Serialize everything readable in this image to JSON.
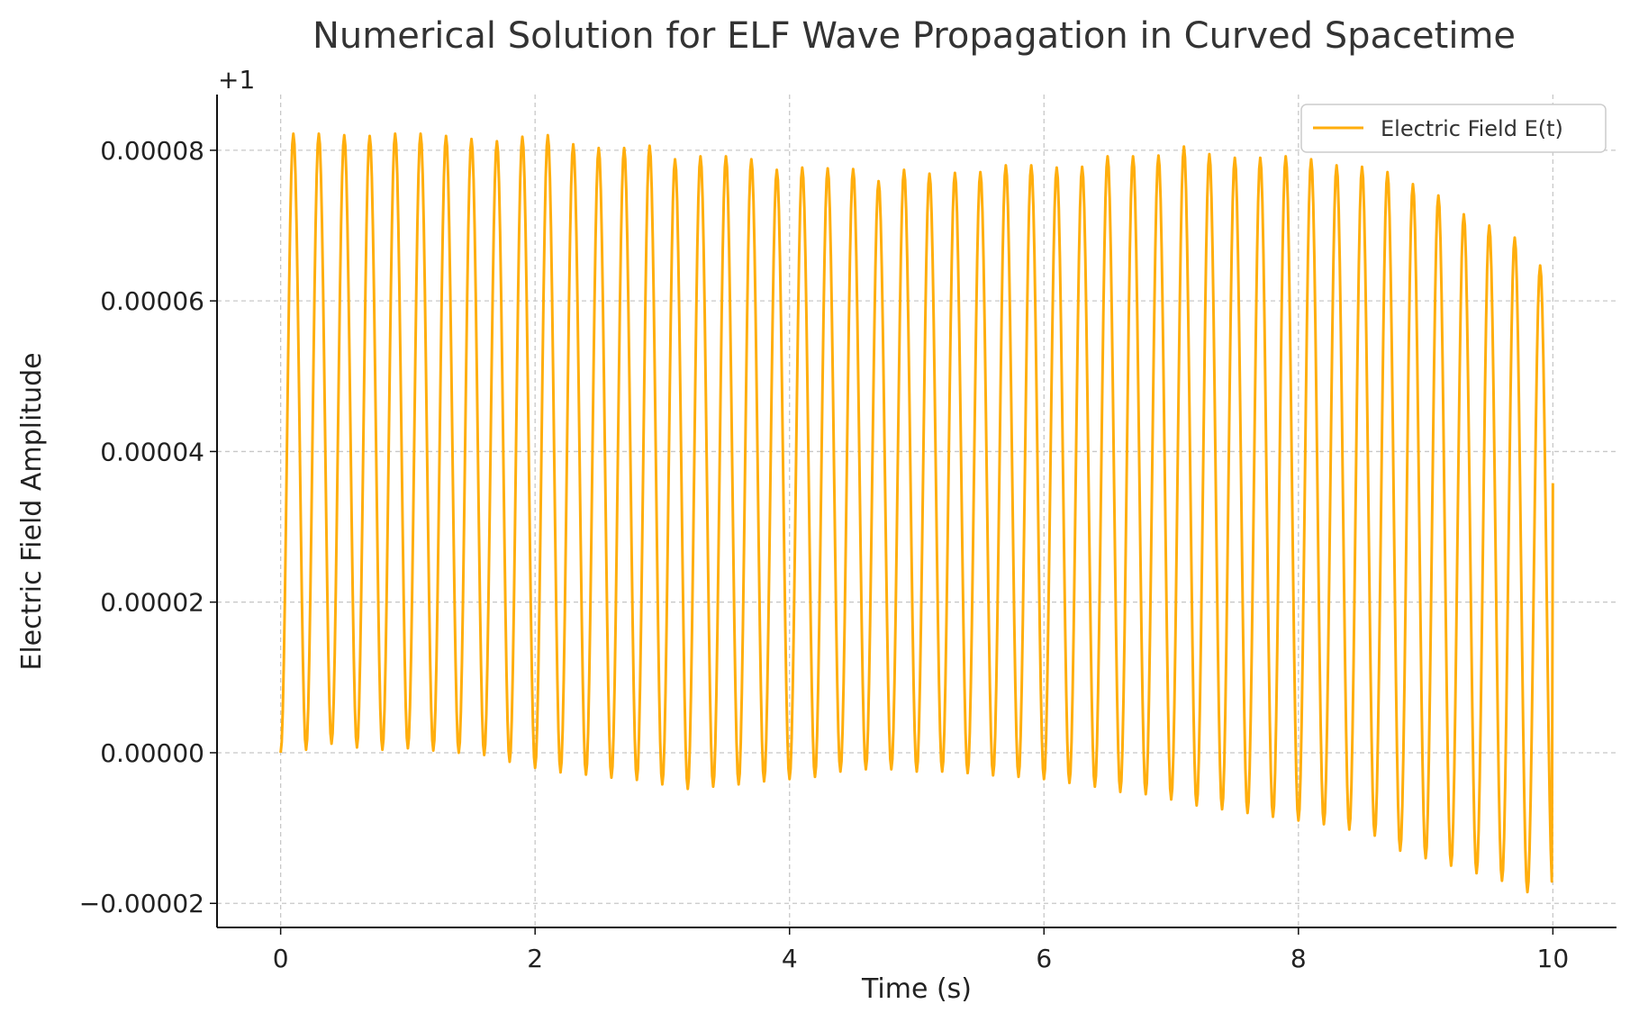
{
  "chart_data": {
    "type": "line",
    "title": "Numerical Solution for ELF Wave Propagation in Curved Spacetime",
    "xlabel": "Time (s)",
    "ylabel": "Electric Field Amplitude",
    "y_offset_label": "+1",
    "y_offset": 1,
    "xlim": [
      -0.5,
      10.5
    ],
    "ylim": [
      -2.32e-05,
      8.74e-05
    ],
    "x_ticks": [
      0,
      2,
      4,
      6,
      8,
      10
    ],
    "x_tick_labels": [
      "0",
      "2",
      "4",
      "6",
      "8",
      "10"
    ],
    "y_ticks": [
      -2e-05,
      0.0,
      2e-05,
      4e-05,
      6e-05,
      8e-05
    ],
    "y_tick_labels": [
      "−0.00002",
      "0.00000",
      "0.00002",
      "0.00004",
      "0.00006",
      "0.00008"
    ],
    "grid": true,
    "legend_position": "top-right",
    "series": [
      {
        "name": "Electric Field E(t)",
        "color": "#FFAE0D",
        "x_start": 0,
        "x_end": 10,
        "cycles": 50,
        "peaks": [
          8.22e-05,
          8.22e-05,
          8.2e-05,
          8.19e-05,
          8.22e-05,
          8.22e-05,
          8.19e-05,
          8.15e-05,
          8.12e-05,
          8.18e-05,
          8.2e-05,
          8.08e-05,
          8.03e-05,
          8.03e-05,
          8.06e-05,
          7.88e-05,
          7.92e-05,
          7.92e-05,
          7.88e-05,
          7.74e-05,
          7.77e-05,
          7.76e-05,
          7.75e-05,
          7.59e-05,
          7.74e-05,
          7.69e-05,
          7.7e-05,
          7.71e-05,
          7.8e-05,
          7.8e-05,
          7.77e-05,
          7.78e-05,
          7.92e-05,
          7.92e-05,
          7.93e-05,
          8.05e-05,
          7.95e-05,
          7.9e-05,
          7.9e-05,
          7.92e-05,
          7.88e-05,
          7.8e-05,
          7.78e-05,
          7.71e-05,
          7.55e-05,
          7.4e-05,
          7.15e-05,
          7e-05,
          6.84e-05,
          6.47e-05
        ],
        "troughs": [
          0.0,
          4e-07,
          1.2e-06,
          7e-07,
          4e-07,
          6e-07,
          3e-07,
          0.0,
          -3e-07,
          -1.2e-06,
          -2e-06,
          -2.6e-06,
          -2.9e-06,
          -3.3e-06,
          -3.6e-06,
          -4.2e-06,
          -4.8e-06,
          -4.5e-06,
          -4.2e-06,
          -3.8e-06,
          -3.5e-06,
          -3.2e-06,
          -2.5e-06,
          -2.2e-06,
          -2.2e-06,
          -2.5e-06,
          -2.5e-06,
          -2.7e-06,
          -3e-06,
          -3.2e-06,
          -3.5e-06,
          -4e-06,
          -4.5e-06,
          -5.2e-06,
          -5.5e-06,
          -6.2e-06,
          -7e-06,
          -7.5e-06,
          -8e-06,
          -8.5e-06,
          -9e-06,
          -9.5e-06,
          -1.02e-05,
          -1.1e-05,
          -1.3e-05,
          -1.4e-05,
          -1.5e-05,
          -1.6e-05,
          -1.7e-05,
          -1.85e-05
        ],
        "end_value": 3.58e-05
      }
    ]
  }
}
